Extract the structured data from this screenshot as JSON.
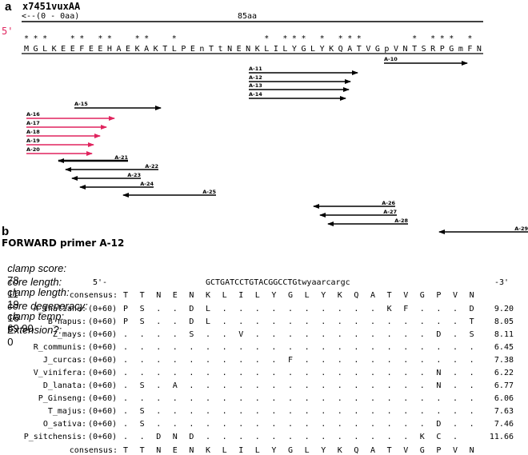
{
  "panel_a": {
    "letter": "a",
    "seq_id": "x7451vuxAA",
    "range_label": "<--(0 - 0aa)",
    "length_label": "85aa",
    "five_prime": "5'",
    "five_prime_color": "#e0245e",
    "residues": [
      "M",
      "G",
      "L",
      "K",
      "E",
      "E",
      "F",
      "E",
      "E",
      "H",
      "A",
      "E",
      "K",
      "A",
      "K",
      "T",
      "L",
      "P",
      "E",
      "n",
      "T",
      "t",
      "N",
      "E",
      "N",
      "K",
      "L",
      "I",
      "L",
      "Y",
      "G",
      "L",
      "Y",
      "K",
      "Q",
      "A",
      "T",
      "V",
      "G",
      "p",
      "V",
      "N",
      "T",
      "S",
      "R",
      "P",
      "G",
      "m",
      "F",
      "N"
    ],
    "star_positions": [
      0,
      1,
      2,
      5,
      6,
      8,
      9,
      12,
      13,
      16,
      26,
      28,
      29,
      30,
      32,
      34,
      35,
      36,
      42,
      44,
      45,
      46,
      48
    ],
    "primers": [
      {
        "label": "A-10",
        "color": "#000000",
        "dir": "fwd"
      },
      {
        "label": "A-11",
        "color": "#000000",
        "dir": "fwd"
      },
      {
        "label": "A-12",
        "color": "#000000",
        "dir": "fwd"
      },
      {
        "label": "A-13",
        "color": "#000000",
        "dir": "fwd"
      },
      {
        "label": "A-14",
        "color": "#000000",
        "dir": "fwd"
      },
      {
        "label": "A-15",
        "color": "#000000",
        "dir": "fwd"
      },
      {
        "label": "A-16",
        "color": "#e0245e",
        "dir": "fwd"
      },
      {
        "label": "A-17",
        "color": "#e0245e",
        "dir": "fwd"
      },
      {
        "label": "A-18",
        "color": "#e0245e",
        "dir": "fwd"
      },
      {
        "label": "A-19",
        "color": "#e0245e",
        "dir": "fwd"
      },
      {
        "label": "A-20",
        "color": "#e0245e",
        "dir": "fwd"
      },
      {
        "label": "A-21",
        "color": "#000000",
        "dir": "rev"
      },
      {
        "label": "A-22",
        "color": "#000000",
        "dir": "rev"
      },
      {
        "label": "A-23",
        "color": "#000000",
        "dir": "rev"
      },
      {
        "label": "A-24",
        "color": "#000000",
        "dir": "rev"
      },
      {
        "label": "A-25",
        "color": "#000000",
        "dir": "rev"
      },
      {
        "label": "A-26",
        "color": "#000000",
        "dir": "rev"
      },
      {
        "label": "A-27",
        "color": "#000000",
        "dir": "rev"
      },
      {
        "label": "A-28",
        "color": "#000000",
        "dir": "rev"
      },
      {
        "label": "A-29",
        "color": "#000000",
        "dir": "rev"
      }
    ]
  },
  "panel_b": {
    "letter": "b",
    "title": "FORWARD primer A-12",
    "info_line1": {
      "clamp_score_label": "clamp score:",
      "clamp_score": "78",
      "clamp_length_label": "clamp length:",
      "clamp_length": "19",
      "clamp_temp_label": "clamp temp:",
      "clamp_temp": "69.90"
    },
    "info_line2": {
      "core_length_label": "core length:",
      "core_length": "11",
      "core_degeneracy_label": "core degeneracy:",
      "core_degeneracy": "16",
      "extension_label": "Extension?:",
      "extension": "0"
    },
    "five_end": "5'-",
    "primer_seq": "GCTGATCCTGTACGGCCTGtwyaarcargc",
    "three_end": "-3'",
    "consensus_label": "consensus:",
    "consensus": [
      "T",
      "T",
      "N",
      "E",
      "N",
      "K",
      "L",
      "I",
      "L",
      "Y",
      "G",
      "L",
      "Y",
      "K",
      "Q",
      "A",
      "T",
      "V",
      "G",
      "P",
      "V",
      "N"
    ],
    "rows": [
      {
        "species": "A_thaliana:",
        "offset": "(0+60)",
        "cells": [
          "P",
          "S",
          ".",
          ".",
          "D",
          "L",
          ".",
          ".",
          ".",
          ".",
          ".",
          ".",
          ".",
          ".",
          ".",
          ".",
          "K",
          "F",
          ".",
          ".",
          ".",
          "D"
        ],
        "score": "9.20"
      },
      {
        "species": "B_napus:",
        "offset": "(0+60)",
        "cells": [
          "P",
          "S",
          ".",
          ".",
          "D",
          "L",
          ".",
          ".",
          ".",
          ".",
          ".",
          ".",
          ".",
          ".",
          ".",
          ".",
          ".",
          ".",
          ".",
          ".",
          ".",
          "T"
        ],
        "score": "8.05"
      },
      {
        "species": "Z_mays:",
        "offset": "(0+60)",
        "cells": [
          ".",
          ".",
          ".",
          ".",
          "S",
          ".",
          ".",
          "V",
          ".",
          ".",
          ".",
          ".",
          ".",
          ".",
          ".",
          ".",
          ".",
          ".",
          ".",
          "D",
          ".",
          "S"
        ],
        "score": "8.11"
      },
      {
        "species": "R_communis:",
        "offset": "(0+60)",
        "cells": [
          ".",
          ".",
          ".",
          ".",
          ".",
          ".",
          ".",
          ".",
          ".",
          ".",
          ".",
          ".",
          ".",
          ".",
          ".",
          ".",
          ".",
          ".",
          ".",
          ".",
          ".",
          "."
        ],
        "score": "6.45"
      },
      {
        "species": "J_curcas:",
        "offset": "(0+60)",
        "cells": [
          ".",
          ".",
          ".",
          ".",
          ".",
          ".",
          ".",
          ".",
          ".",
          ".",
          "F",
          ".",
          ".",
          ".",
          ".",
          ".",
          ".",
          ".",
          ".",
          ".",
          ".",
          "."
        ],
        "score": "7.38"
      },
      {
        "species": "V_vinifera:",
        "offset": "(0+60)",
        "cells": [
          ".",
          ".",
          ".",
          ".",
          ".",
          ".",
          ".",
          ".",
          ".",
          ".",
          ".",
          ".",
          ".",
          ".",
          ".",
          ".",
          ".",
          ".",
          ".",
          "N",
          ".",
          "."
        ],
        "score": "6.22"
      },
      {
        "species": "D_lanata:",
        "offset": "(0+60)",
        "cells": [
          ".",
          "S",
          ".",
          "A",
          ".",
          ".",
          ".",
          ".",
          ".",
          ".",
          ".",
          ".",
          ".",
          ".",
          ".",
          ".",
          ".",
          ".",
          ".",
          "N",
          ".",
          "."
        ],
        "score": "6.77"
      },
      {
        "species": "P_Ginseng:",
        "offset": "(0+60)",
        "cells": [
          ".",
          ".",
          ".",
          ".",
          ".",
          ".",
          ".",
          ".",
          ".",
          ".",
          ".",
          ".",
          ".",
          ".",
          ".",
          ".",
          ".",
          ".",
          ".",
          ".",
          ".",
          "."
        ],
        "score": "6.06"
      },
      {
        "species": "T_majus:",
        "offset": "(0+60)",
        "cells": [
          ".",
          "S",
          ".",
          ".",
          ".",
          ".",
          ".",
          ".",
          ".",
          ".",
          ".",
          ".",
          ".",
          ".",
          ".",
          ".",
          ".",
          ".",
          ".",
          ".",
          ".",
          "."
        ],
        "score": "7.63"
      },
      {
        "species": "O_sativa:",
        "offset": "(0+60)",
        "cells": [
          ".",
          "S",
          ".",
          ".",
          ".",
          ".",
          ".",
          ".",
          ".",
          ".",
          ".",
          ".",
          ".",
          ".",
          ".",
          ".",
          ".",
          ".",
          ".",
          "D",
          ".",
          "."
        ],
        "score": "7.46"
      },
      {
        "species": "P_sitchensis:",
        "offset": "(0+60)",
        "cells": [
          ".",
          ".",
          "D",
          "N",
          "D",
          ".",
          ".",
          ".",
          ".",
          ".",
          ".",
          ".",
          ".",
          ".",
          ".",
          ".",
          ".",
          ".",
          "K",
          "C",
          ".",
          ""
        ],
        "score": "11.66"
      }
    ]
  }
}
